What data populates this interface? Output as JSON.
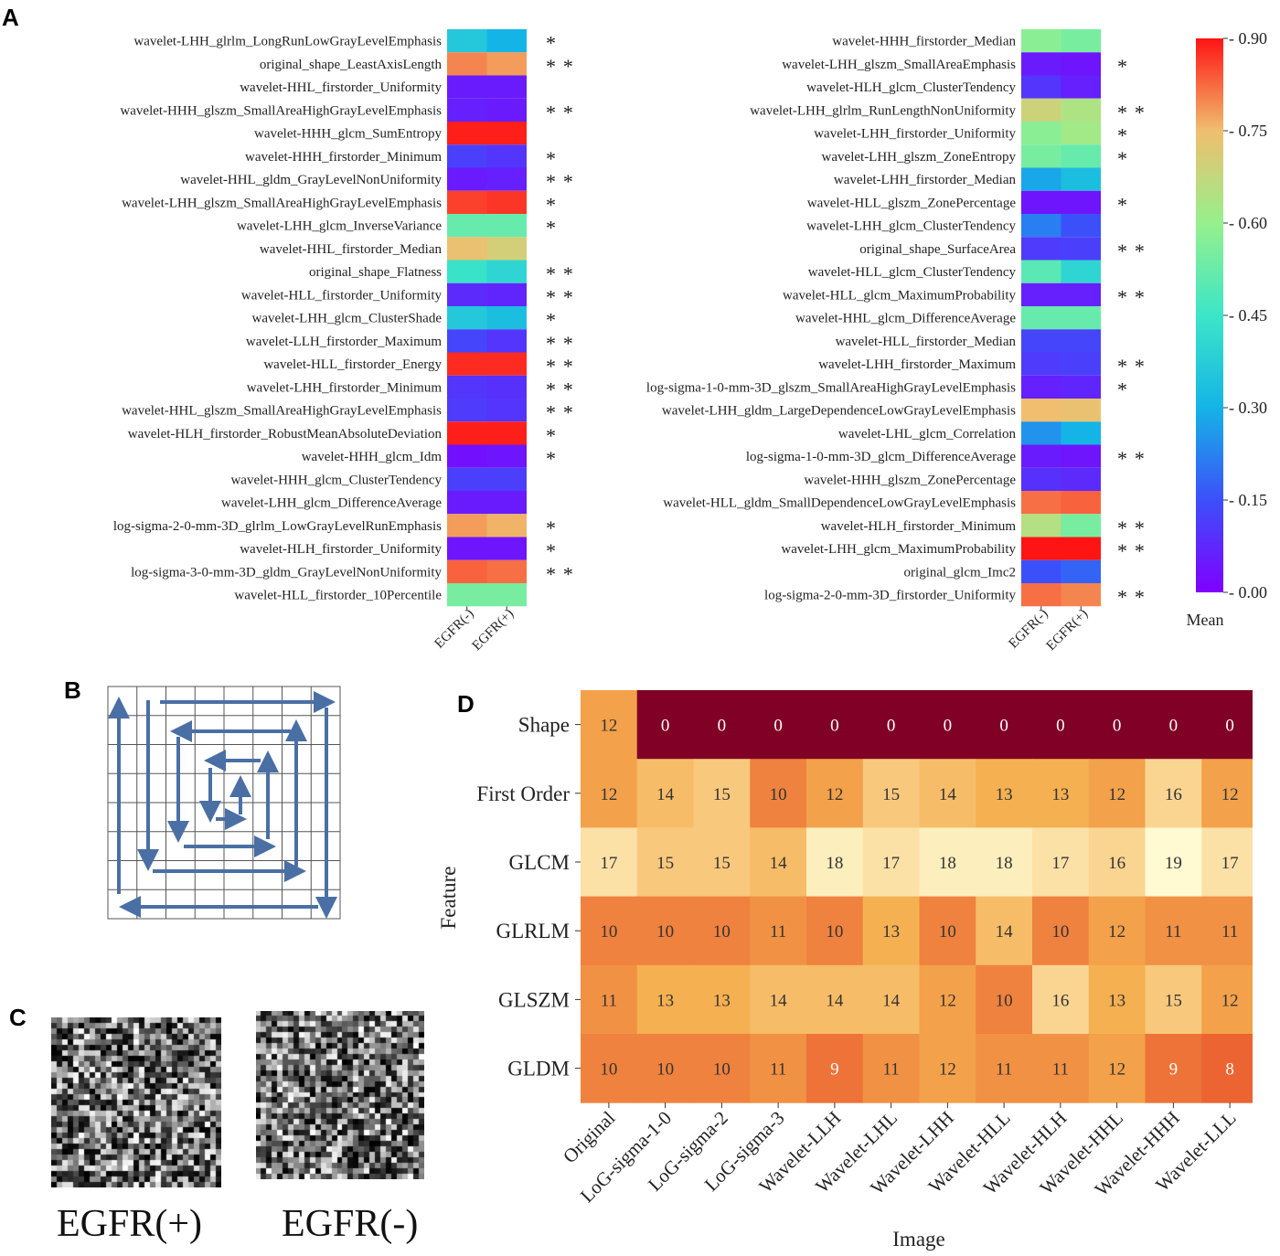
{
  "panels": {
    "a": "A",
    "b": "B",
    "c": "C",
    "d": "D"
  },
  "chart_data": [
    {
      "type": "heatmap",
      "panel": "A-left",
      "colorscale": "rainbow",
      "columns": [
        "EGFR(-)",
        "EGFR(+)"
      ],
      "rows": [
        "wavelet-LHH_glrlm_LongRunLowGrayLevelEmphasis",
        "original_shape_LeastAxisLength",
        "wavelet-HHL_firstorder_Uniformity",
        "wavelet-HHH_glszm_SmallAreaHighGrayLevelEmphasis",
        "wavelet-HHH_glcm_SumEntropy",
        "wavelet-HHH_firstorder_Minimum",
        "wavelet-HHL_gldm_GrayLevelNonUniformity",
        "wavelet-LHH_glszm_SmallAreaHighGrayLevelEmphasis",
        "wavelet-LHH_glcm_InverseVariance",
        "wavelet-HHL_firstorder_Median",
        "original_shape_Flatness",
        "wavelet-HLL_firstorder_Uniformity",
        "wavelet-LHH_glcm_ClusterShade",
        "wavelet-LLH_firstorder_Maximum",
        "wavelet-HLL_firstorder_Energy",
        "wavelet-LHH_firstorder_Minimum",
        "wavelet-HHL_glszm_SmallAreaHighGrayLevelEmphasis",
        "wavelet-HLH_firstorder_RobustMeanAbsoluteDeviation",
        "wavelet-HHH_glcm_Idm",
        "wavelet-HHH_glcm_ClusterTendency",
        "wavelet-LHH_glcm_DifferenceAverage",
        "log-sigma-2-0-mm-3D_glrlm_LowGrayLevelRunEmphasis",
        "wavelet-HLH_firstorder_Uniformity",
        "log-sigma-3-0-mm-3D_gldm_GrayLevelNonUniformity",
        "wavelet-HLL_firstorder_10Percentile"
      ],
      "values": [
        [
          0.36,
          0.3
        ],
        [
          0.8,
          0.78
        ],
        [
          0.05,
          0.05
        ],
        [
          0.06,
          0.05
        ],
        [
          0.89,
          0.89
        ],
        [
          0.12,
          0.1
        ],
        [
          0.05,
          0.06
        ],
        [
          0.86,
          0.87
        ],
        [
          0.52,
          0.52
        ],
        [
          0.74,
          0.7
        ],
        [
          0.44,
          0.4
        ],
        [
          0.08,
          0.07
        ],
        [
          0.36,
          0.33
        ],
        [
          0.13,
          0.1
        ],
        [
          0.88,
          0.88
        ],
        [
          0.1,
          0.09
        ],
        [
          0.11,
          0.1
        ],
        [
          0.89,
          0.89
        ],
        [
          0.03,
          0.04
        ],
        [
          0.12,
          0.12
        ],
        [
          0.05,
          0.05
        ],
        [
          0.78,
          0.76
        ],
        [
          0.04,
          0.04
        ],
        [
          0.83,
          0.82
        ],
        [
          0.55,
          0.55
        ]
      ],
      "significance": [
        "*",
        "**",
        "",
        "**",
        "",
        "*",
        "**",
        "*",
        "*",
        "",
        "**",
        "**",
        "*",
        "**",
        "**",
        "**",
        "**",
        "*",
        "*",
        "",
        "",
        "*",
        "*",
        "**",
        ""
      ]
    },
    {
      "type": "heatmap",
      "panel": "A-right",
      "colorscale": "rainbow",
      "columns": [
        "EGFR(-)",
        "EGFR(+)"
      ],
      "rows": [
        "wavelet-HHH_firstorder_Median",
        "wavelet-LHH_glszm_SmallAreaEmphasis",
        "wavelet-HLH_glcm_ClusterTendency",
        "wavelet-LHH_glrlm_RunLengthNonUniformity",
        "wavelet-LHH_firstorder_Uniformity",
        "wavelet-LHH_glszm_ZoneEntropy",
        "wavelet-LHH_firstorder_Median",
        "wavelet-HLL_glszm_ZonePercentage",
        "wavelet-LHH_glcm_ClusterTendency",
        "original_shape_SurfaceArea",
        "wavelet-HLL_glcm_ClusterTendency",
        "wavelet-HLL_glcm_MaximumProbability",
        "wavelet-HHL_glcm_DifferenceAverage",
        "wavelet-HLL_firstorder_Median",
        "wavelet-LHH_firstorder_Maximum",
        "log-sigma-1-0-mm-3D_glszm_SmallAreaHighGrayLevelEmphasis",
        "wavelet-LHH_gldm_LargeDependenceLowGrayLevelEmphasis",
        "wavelet-LHL_glcm_Correlation",
        "log-sigma-1-0-mm-3D_glcm_DifferenceAverage",
        "wavelet-HHH_glszm_ZonePercentage",
        "wavelet-HLL_gldm_SmallDependenceLowGrayLevelEmphasis",
        "wavelet-HLH_firstorder_Minimum",
        "wavelet-LHH_glcm_MaximumProbability",
        "original_glcm_Imc2",
        "log-sigma-2-0-mm-3D_firstorder_Uniformity"
      ],
      "values": [
        [
          0.58,
          0.55
        ],
        [
          0.05,
          0.04
        ],
        [
          0.1,
          0.06
        ],
        [
          0.69,
          0.64
        ],
        [
          0.58,
          0.62
        ],
        [
          0.55,
          0.52
        ],
        [
          0.28,
          0.33
        ],
        [
          0.04,
          0.04
        ],
        [
          0.22,
          0.15
        ],
        [
          0.11,
          0.12
        ],
        [
          0.5,
          0.4
        ],
        [
          0.06,
          0.06
        ],
        [
          0.52,
          0.52
        ],
        [
          0.13,
          0.13
        ],
        [
          0.11,
          0.12
        ],
        [
          0.06,
          0.07
        ],
        [
          0.75,
          0.74
        ],
        [
          0.25,
          0.3
        ],
        [
          0.05,
          0.04
        ],
        [
          0.09,
          0.08
        ],
        [
          0.82,
          0.83
        ],
        [
          0.65,
          0.55
        ],
        [
          0.9,
          0.9
        ],
        [
          0.15,
          0.18
        ],
        [
          0.82,
          0.8
        ]
      ],
      "significance": [
        "",
        "*",
        "",
        "**",
        "*",
        "*",
        "",
        "*",
        "",
        "**",
        "",
        "**",
        "",
        "",
        "**",
        "*",
        "",
        "",
        "**",
        "",
        "",
        "**",
        "**",
        "",
        "**"
      ]
    },
    {
      "type": "colorbar",
      "label": "Mean",
      "range": [
        0.0,
        0.9
      ],
      "ticks": [
        "0.90",
        "0.75",
        "0.60",
        "0.45",
        "0.30",
        "0.15",
        "0.00"
      ]
    },
    {
      "type": "heatmap",
      "panel": "D",
      "colorscale": "YlOrRd",
      "xlabel": "Image",
      "ylabel": "Feature",
      "columns": [
        "Original",
        "LoG-sigma-1-0",
        "LoG-sigma-2",
        "LoG-sigma-3",
        "Wavelet-LLH",
        "Wavelet-LHL",
        "Wavelet-LHH",
        "Wavelet-HLL",
        "Wavelet-HLH",
        "Wavelet-HHL",
        "Wavelet-HHH",
        "Wavelet-LLL"
      ],
      "rows": [
        "Shape",
        "First Order",
        "GLCM",
        "GLRLM",
        "GLSZM",
        "GLDM"
      ],
      "values": [
        [
          12,
          0,
          0,
          0,
          0,
          0,
          0,
          0,
          0,
          0,
          0,
          0
        ],
        [
          12,
          14,
          15,
          10,
          12,
          15,
          14,
          13,
          13,
          12,
          16,
          12
        ],
        [
          17,
          15,
          15,
          14,
          18,
          17,
          18,
          18,
          17,
          16,
          19,
          17
        ],
        [
          10,
          10,
          10,
          11,
          10,
          13,
          10,
          14,
          10,
          12,
          11,
          11
        ],
        [
          11,
          13,
          13,
          14,
          14,
          14,
          12,
          10,
          16,
          13,
          15,
          12
        ],
        [
          10,
          10,
          10,
          11,
          9,
          11,
          12,
          11,
          11,
          12,
          9,
          8
        ]
      ]
    }
  ],
  "panel_c": {
    "left_label": "EGFR(+)",
    "right_label": "EGFR(-)"
  }
}
